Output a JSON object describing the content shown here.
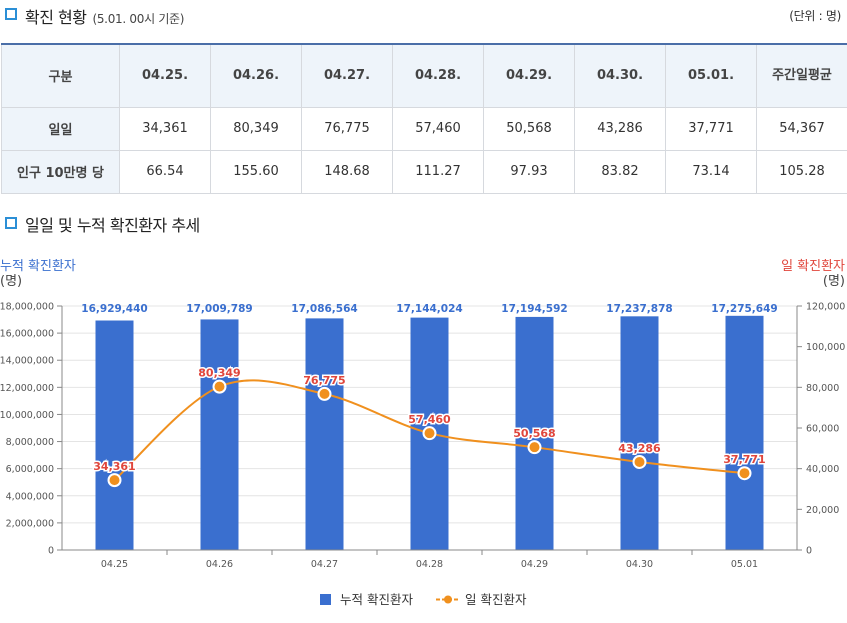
{
  "section1": {
    "title": "확진 현황",
    "subtitle": "(5.01. 00시 기준)",
    "unit": "(단위 : 명)"
  },
  "table": {
    "header": [
      "구분",
      "04.25.",
      "04.26.",
      "04.27.",
      "04.28.",
      "04.29.",
      "04.30.",
      "05.01.",
      "주간일평균"
    ],
    "rows": [
      {
        "label": "일일",
        "values": [
          "34,361",
          "80,349",
          "76,775",
          "57,460",
          "50,568",
          "43,286",
          "37,771",
          "54,367"
        ]
      },
      {
        "label": "인구 10만명 당",
        "values": [
          "66.54",
          "155.60",
          "148.68",
          "111.27",
          "97.93",
          "83.82",
          "73.14",
          "105.28"
        ]
      }
    ]
  },
  "section2": {
    "title": "일일 및 누적 확진환자 추세"
  },
  "colors": {
    "bar": "#3a6fcf",
    "line": "#f0901e",
    "bar_label": "#3a6fcf",
    "line_label": "#e0463c",
    "left_axis_title": "#3a6fcf",
    "right_axis_title": "#e0463c",
    "icon": "#2b8fd6"
  },
  "chart_data": {
    "type": "bar+line",
    "categories": [
      "04.25",
      "04.26",
      "04.27",
      "04.28",
      "04.29",
      "04.30",
      "05.01"
    ],
    "series": [
      {
        "name": "누적 확진환자",
        "type": "bar",
        "axis": "left",
        "values": [
          16929440,
          17009789,
          17086564,
          17144024,
          17194592,
          17237878,
          17275649
        ],
        "labels": [
          "16,929,440",
          "17,009,789",
          "17,086,564",
          "17,144,024",
          "17,194,592",
          "17,237,878",
          "17,275,649"
        ]
      },
      {
        "name": "일 확진환자",
        "type": "line",
        "axis": "right",
        "values": [
          34361,
          80349,
          76775,
          57460,
          50568,
          43286,
          37771
        ],
        "labels": [
          "34,361",
          "80,349",
          "76,775",
          "57,460",
          "50,568",
          "43,286",
          "37,771"
        ]
      }
    ],
    "left_axis": {
      "title_line1": "누적 확진환자",
      "title_line2": "(명)",
      "ylim": [
        0,
        18000000
      ],
      "ticks": [
        0,
        2000000,
        4000000,
        6000000,
        8000000,
        10000000,
        12000000,
        14000000,
        16000000,
        18000000
      ],
      "tick_labels": [
        "0",
        "2,000,000",
        "4,000,000",
        "6,000,000",
        "8,000,000",
        "10,000,000",
        "12,000,000",
        "14,000,000",
        "16,000,000",
        "18,000,000"
      ]
    },
    "right_axis": {
      "title_line1": "일 확진환자",
      "title_line2": "(명)",
      "ylim": [
        0,
        120000
      ],
      "ticks": [
        0,
        20000,
        40000,
        60000,
        80000,
        100000,
        120000
      ],
      "tick_labels": [
        "0",
        "20,000",
        "40,000",
        "60,000",
        "80,000",
        "100,000",
        "120,000"
      ]
    },
    "legend": [
      "누적 확진환자",
      "일 확진환자"
    ],
    "legend_position": "bottom-center",
    "grid": true
  }
}
